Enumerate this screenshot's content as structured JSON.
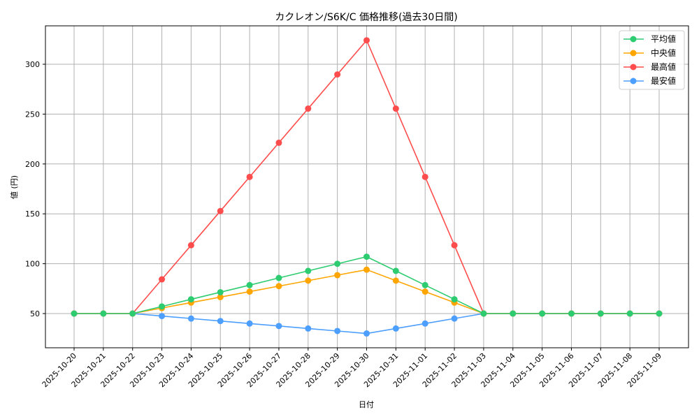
{
  "chart_data": {
    "type": "line",
    "title": "カクレオン/S6K/C 価格推移(過去30日間)",
    "xlabel": "日付",
    "ylabel": "値 (円)",
    "ylim": [
      15,
      337
    ],
    "yticks": [
      50,
      100,
      150,
      200,
      250,
      300
    ],
    "grid": true,
    "legend_position": "upper right",
    "categories": [
      "2025-10-20",
      "2025-10-21",
      "2025-10-22",
      "2025-10-23",
      "2025-10-24",
      "2025-10-25",
      "2025-10-26",
      "2025-10-27",
      "2025-10-28",
      "2025-10-29",
      "2025-10-30",
      "2025-10-31",
      "2025-11-01",
      "2025-11-02",
      "2025-11-03",
      "2025-11-04",
      "2025-11-05",
      "2025-11-06",
      "2025-11-07",
      "2025-11-08",
      "2025-11-09"
    ],
    "series": [
      {
        "name": "平均値",
        "color": "#2ecc71",
        "values": [
          50,
          50,
          50,
          57.1,
          64.3,
          71.4,
          78.5,
          85.7,
          92.8,
          99.9,
          107,
          92.8,
          78.5,
          64.3,
          50,
          50,
          50,
          50,
          50,
          50,
          50
        ]
      },
      {
        "name": "中央値",
        "color": "#ffa500",
        "values": [
          50,
          50,
          50,
          55.5,
          61,
          66.5,
          72,
          77.5,
          83,
          88.5,
          94,
          83,
          72,
          61,
          50,
          50,
          50,
          50,
          50,
          50,
          50
        ]
      },
      {
        "name": "最高値",
        "color": "#ff4d4d",
        "values": [
          50,
          50,
          50,
          84.3,
          118.5,
          152.8,
          187,
          221.3,
          255.5,
          289.8,
          324,
          255.5,
          187,
          118.5,
          50,
          50,
          50,
          50,
          50,
          50,
          50
        ]
      },
      {
        "name": "最安値",
        "color": "#4d9fff",
        "values": [
          50,
          50,
          50,
          47.5,
          45,
          42.5,
          40,
          37.5,
          35,
          32.5,
          30,
          35,
          40,
          45,
          50,
          50,
          50,
          50,
          50,
          50,
          50
        ]
      }
    ]
  }
}
